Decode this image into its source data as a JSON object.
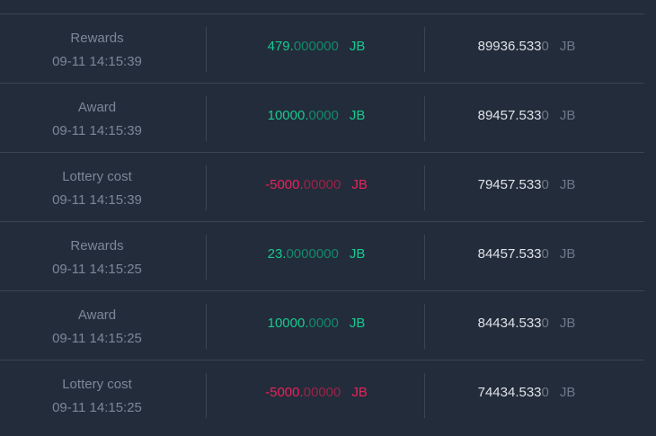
{
  "colors": {
    "background": "#232c3b",
    "positive": "#17c98f",
    "negative": "#e8235a"
  },
  "rows": [
    {
      "type": "Rewards",
      "time": "09-11 14:15:39",
      "amount_int": "479.",
      "amount_frac": "000000",
      "amount_unit": "JB",
      "sign": "pos",
      "balance_main": "89936.533",
      "balance_tail": "0",
      "balance_unit": "JB"
    },
    {
      "type": "Award",
      "time": "09-11 14:15:39",
      "amount_int": "10000.",
      "amount_frac": "0000",
      "amount_unit": "JB",
      "sign": "pos",
      "balance_main": "89457.533",
      "balance_tail": "0",
      "balance_unit": "JB"
    },
    {
      "type": "Lottery cost",
      "time": "09-11 14:15:39",
      "amount_int": "-5000.",
      "amount_frac": "00000",
      "amount_unit": "JB",
      "sign": "neg",
      "balance_main": "79457.533",
      "balance_tail": "0",
      "balance_unit": "JB"
    },
    {
      "type": "Rewards",
      "time": "09-11 14:15:25",
      "amount_int": "23.",
      "amount_frac": "0000000",
      "amount_unit": "JB",
      "sign": "pos",
      "balance_main": "84457.533",
      "balance_tail": "0",
      "balance_unit": "JB"
    },
    {
      "type": "Award",
      "time": "09-11 14:15:25",
      "amount_int": "10000.",
      "amount_frac": "0000",
      "amount_unit": "JB",
      "sign": "pos",
      "balance_main": "84434.533",
      "balance_tail": "0",
      "balance_unit": "JB"
    },
    {
      "type": "Lottery cost",
      "time": "09-11 14:15:25",
      "amount_int": "-5000.",
      "amount_frac": "00000",
      "amount_unit": "JB",
      "sign": "neg",
      "balance_main": "74434.533",
      "balance_tail": "0",
      "balance_unit": "JB"
    }
  ]
}
